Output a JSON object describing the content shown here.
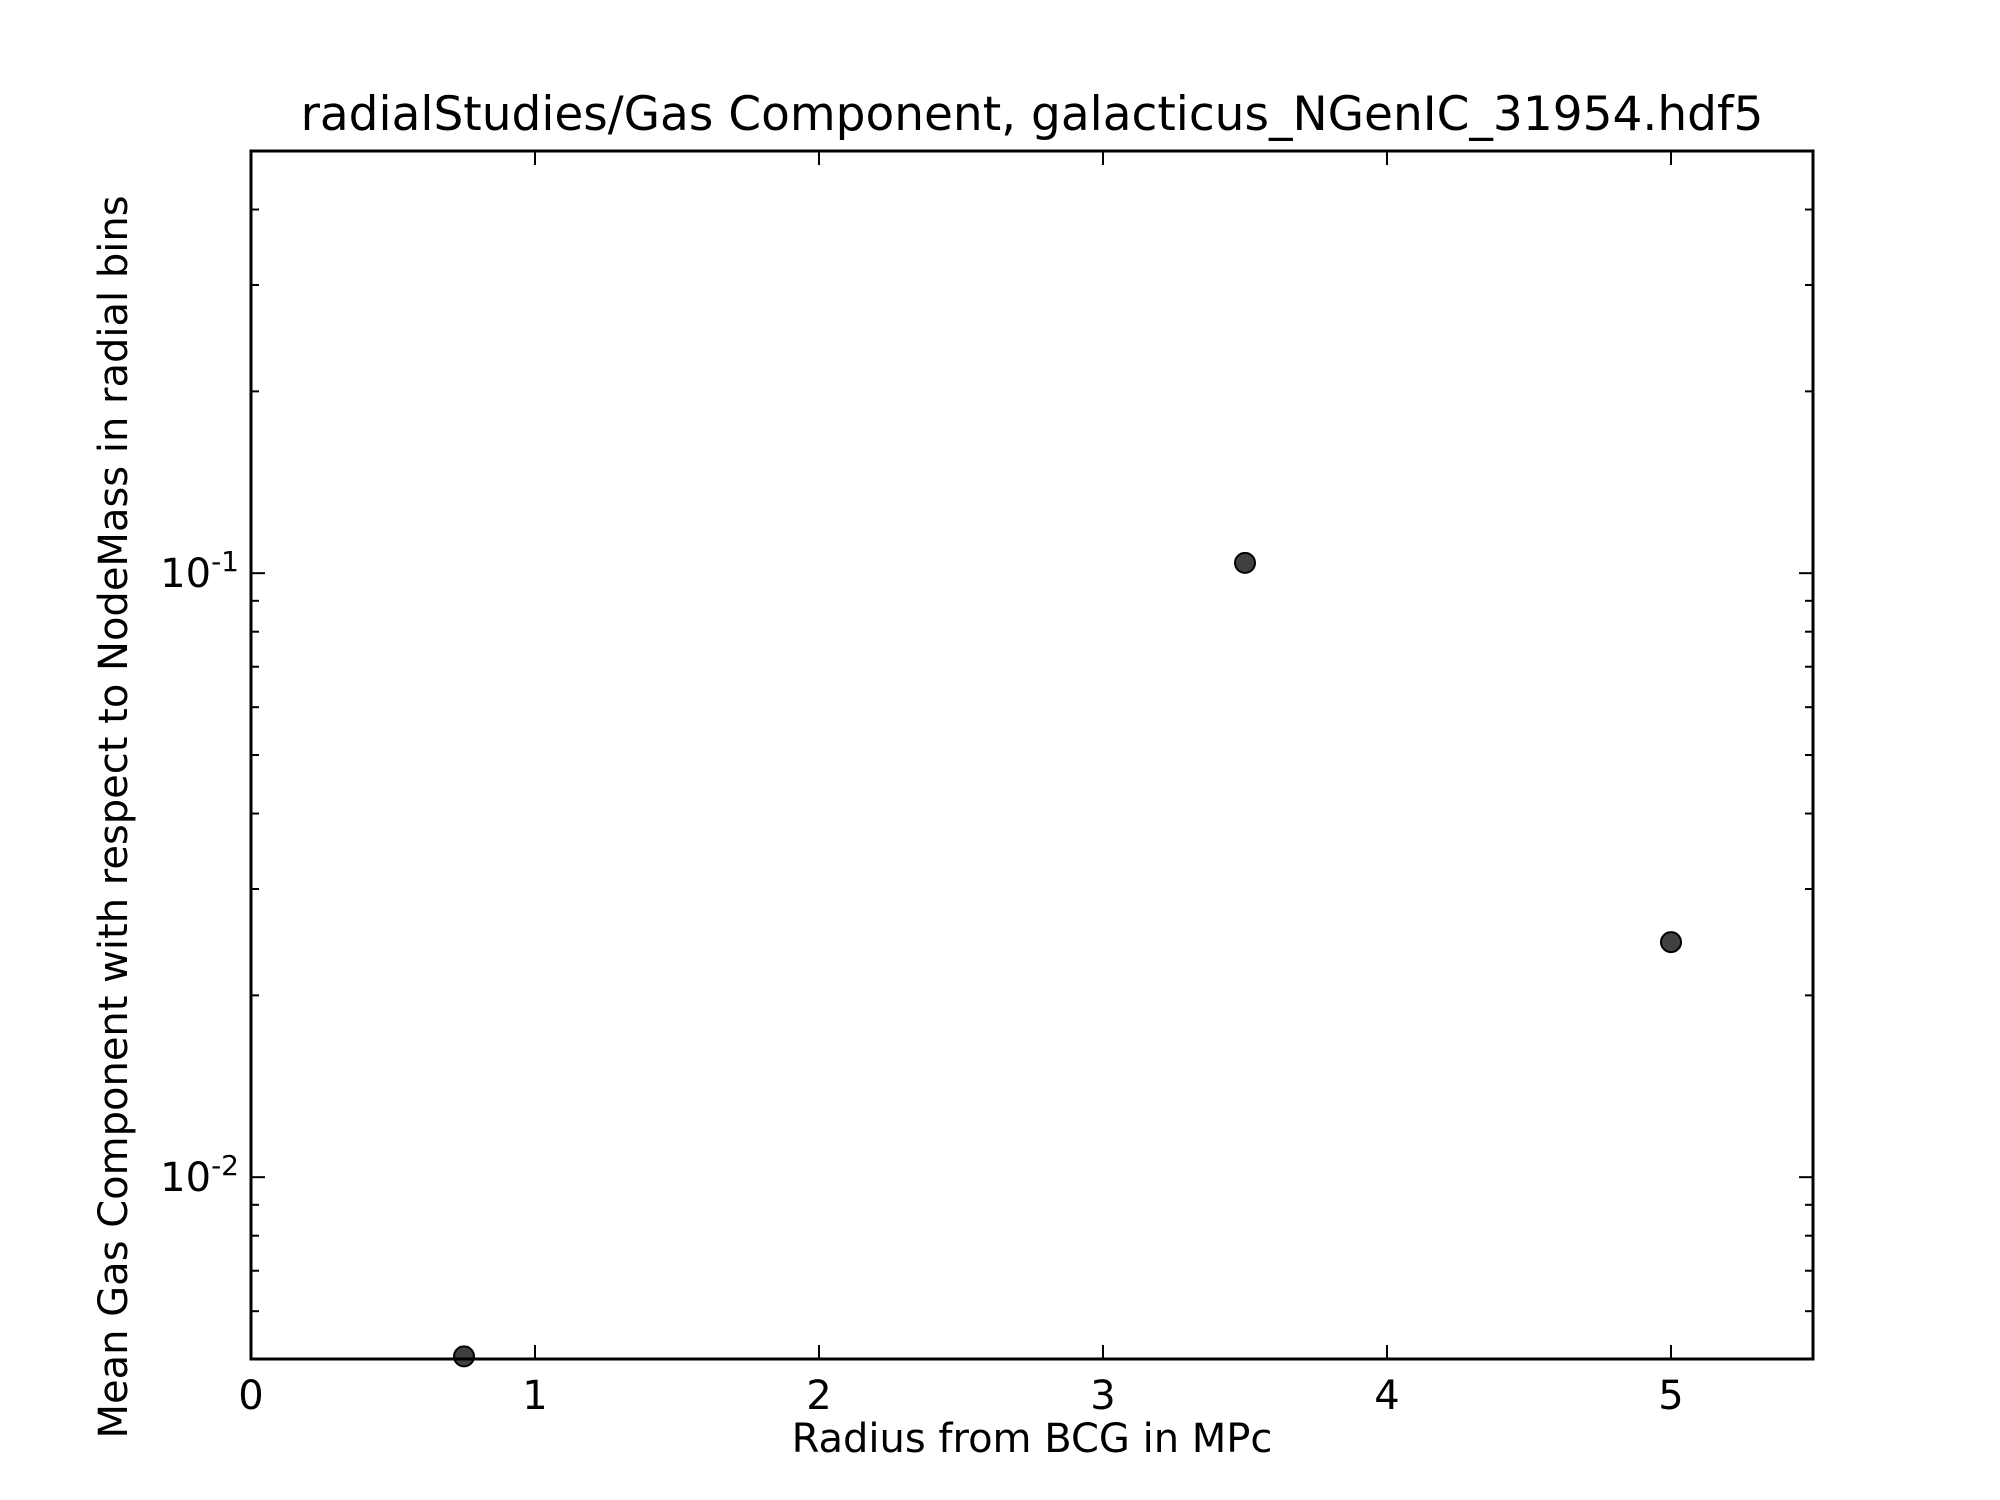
{
  "chart_data": {
    "type": "scatter",
    "title": "radialStudies/Gas Component, galacticus_NGenIC_31954.hdf5",
    "xlabel": "Radius from BCG in MPc",
    "ylabel": "Mean Gas Component with respect to NodeMass in radial bins",
    "xlim": [
      0,
      5.5
    ],
    "ylim": [
      0.005,
      0.5
    ],
    "yscale": "log",
    "grid": false,
    "legend": "none",
    "x_ticks": [
      0,
      1,
      2,
      3,
      4,
      5
    ],
    "y_ticks": [
      {
        "value": 0.1,
        "base": "10",
        "exp": "-1"
      },
      {
        "value": 0.01,
        "base": "10",
        "exp": "-2"
      }
    ],
    "series": [
      {
        "x": [
          0.75,
          3.5,
          5.0
        ],
        "y": [
          0.00505,
          0.104,
          0.0245
        ],
        "color": "#404040"
      }
    ]
  }
}
